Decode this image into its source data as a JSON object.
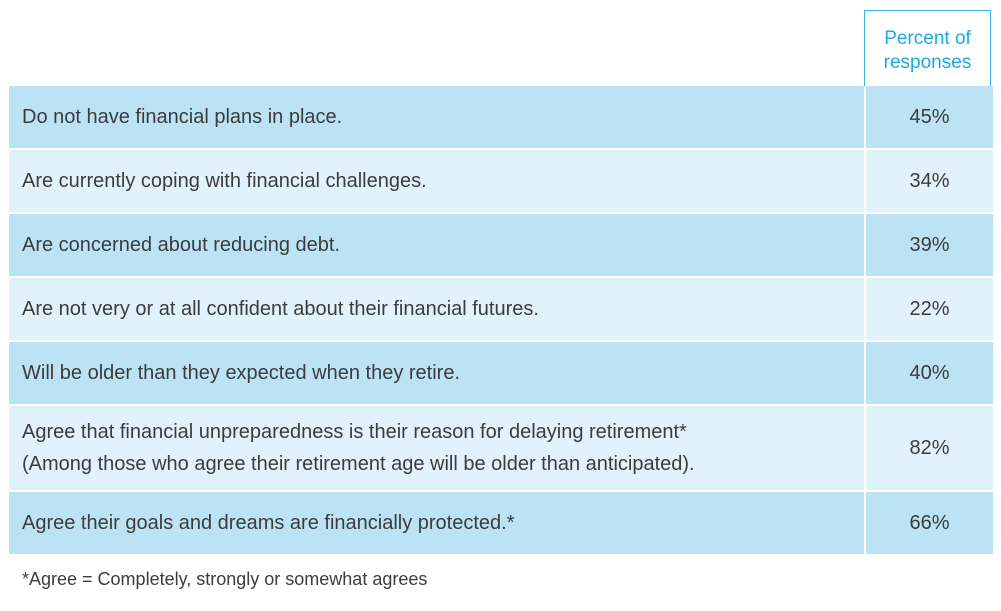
{
  "chart_data": {
    "type": "table",
    "column_header": "Percent of\nresponses",
    "rows": [
      {
        "label": "Do not have financial plans in place.",
        "value": "45%"
      },
      {
        "label": "Are currently coping with financial challenges.",
        "value": "34%"
      },
      {
        "label": "Are concerned about reducing debt.",
        "value": "39%"
      },
      {
        "label": "Are not very or at all confident about their financial futures.",
        "value": "22%"
      },
      {
        "label": "Will be older than they expected when they retire.",
        "value": "40%"
      },
      {
        "label": "Agree that financial unpreparedness is their reason for delaying retirement*\n(Among those who agree their retirement age will be older than anticipated).",
        "value": "82%"
      },
      {
        "label": "Agree their goals and dreams are financially protected.*",
        "value": "66%"
      }
    ],
    "footnote": "*Agree = Completely, strongly or somewhat agrees"
  },
  "colors": {
    "header_text": "#1ea9df",
    "header_border": "#3fb2e3",
    "row_dark": "#bce3f4",
    "row_light": "#e1f2fb",
    "body_text": "#3c3c3c"
  }
}
